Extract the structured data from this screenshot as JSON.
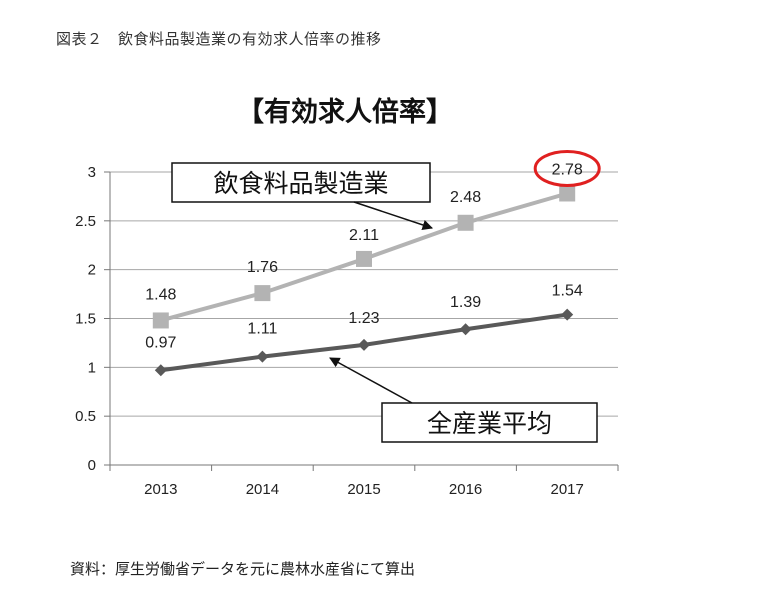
{
  "figure_title": "図表２　飲食料品製造業の有効求人倍率の推移",
  "source_note": "資料：厚生労働省データを元に農林水産省にて算出",
  "colors": {
    "series_food": "#b3b3b3",
    "series_all": "#595959",
    "highlight": "#e02020",
    "grid": "#a6a6a6"
  },
  "chart_data": {
    "type": "line",
    "title": "【有効求人倍率】",
    "categories": [
      "2013",
      "2014",
      "2015",
      "2016",
      "2017"
    ],
    "ylim": [
      0,
      3
    ],
    "yticks": [
      "0",
      "0.5",
      "1",
      "1.5",
      "2",
      "2.5",
      "3"
    ],
    "grid": true,
    "series": [
      {
        "name": "飲食料品製造業",
        "values": [
          1.48,
          1.76,
          2.11,
          2.48,
          2.78
        ],
        "labels": [
          "1.48",
          "1.76",
          "2.11",
          "2.48",
          "2.78"
        ],
        "marker": "square"
      },
      {
        "name": "全産業平均",
        "values": [
          0.97,
          1.11,
          1.23,
          1.39,
          1.54
        ],
        "labels": [
          "0.97",
          "1.11",
          "1.23",
          "1.39",
          "1.54"
        ],
        "marker": "diamond"
      }
    ]
  }
}
